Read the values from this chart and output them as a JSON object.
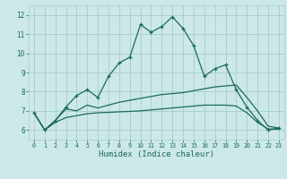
{
  "xlabel": "Humidex (Indice chaleur)",
  "xlim": [
    -0.5,
    23.5
  ],
  "ylim": [
    5.5,
    12.5
  ],
  "xticks": [
    0,
    1,
    2,
    3,
    4,
    5,
    6,
    7,
    8,
    9,
    10,
    11,
    12,
    13,
    14,
    15,
    16,
    17,
    18,
    19,
    20,
    21,
    22,
    23
  ],
  "yticks": [
    6,
    7,
    8,
    9,
    10,
    11,
    12
  ],
  "bg_color": "#cce8e8",
  "grid_color": "#aacccc",
  "line_color": "#1a6b5a",
  "line1_y": [
    6.9,
    6.0,
    6.5,
    7.2,
    7.8,
    8.1,
    7.7,
    8.8,
    9.5,
    9.8,
    11.5,
    11.1,
    11.4,
    11.9,
    11.3,
    10.4,
    8.8,
    9.2,
    9.4,
    8.1,
    7.2,
    6.5,
    6.0,
    6.1
  ],
  "line2_y": [
    6.9,
    6.0,
    6.5,
    7.1,
    7.0,
    7.3,
    7.15,
    7.3,
    7.45,
    7.55,
    7.65,
    7.75,
    7.85,
    7.9,
    7.95,
    8.05,
    8.15,
    8.25,
    8.3,
    8.35,
    7.7,
    7.0,
    6.2,
    6.1
  ],
  "line3_y": [
    6.9,
    6.0,
    6.4,
    6.65,
    6.75,
    6.85,
    6.9,
    6.92,
    6.95,
    6.97,
    7.0,
    7.05,
    7.1,
    7.15,
    7.2,
    7.25,
    7.3,
    7.3,
    7.3,
    7.25,
    6.9,
    6.4,
    6.05,
    6.05
  ]
}
